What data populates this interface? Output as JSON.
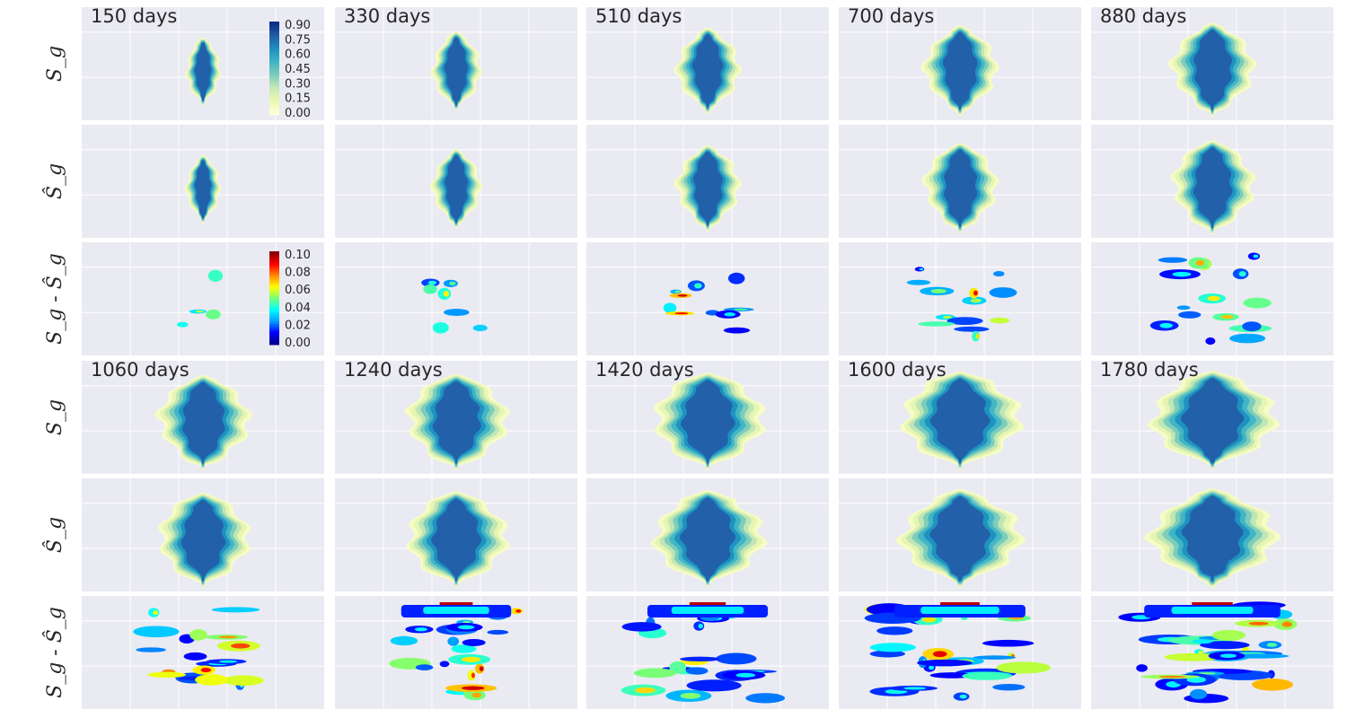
{
  "chart_data": {
    "type": "heatmap",
    "grid": true,
    "time_labels": [
      "150 days",
      "330 days",
      "510 days",
      "700 days",
      "880 days",
      "1060 days",
      "1240 days",
      "1420 days",
      "1600 days",
      "1780 days"
    ],
    "row_labels": {
      "truth": "S_g",
      "prediction": "Ŝ_g",
      "error": "S_g - Ŝ_g"
    },
    "colorbar_saturation": {
      "ticks": [
        "0.00",
        "0.15",
        "0.30",
        "0.45",
        "0.60",
        "0.75",
        "0.90"
      ],
      "range": [
        0,
        0.95
      ],
      "colormap": "YlGnBu"
    },
    "colorbar_error": {
      "ticks": [
        "0.00",
        "0.02",
        "0.04",
        "0.06",
        "0.08",
        "0.10"
      ],
      "range": [
        0,
        0.11
      ],
      "colormap": "jet"
    },
    "plume_extent": [
      {
        "width": 0.07,
        "height": 0.6
      },
      {
        "width": 0.1,
        "height": 0.7
      },
      {
        "width": 0.13,
        "height": 0.76
      },
      {
        "width": 0.15,
        "height": 0.8
      },
      {
        "width": 0.17,
        "height": 0.84
      },
      {
        "width": 0.19,
        "height": 0.86
      },
      {
        "width": 0.21,
        "height": 0.88
      },
      {
        "width": 0.23,
        "height": 0.9
      },
      {
        "width": 0.25,
        "height": 0.92
      },
      {
        "width": 0.26,
        "height": 0.93
      }
    ]
  }
}
